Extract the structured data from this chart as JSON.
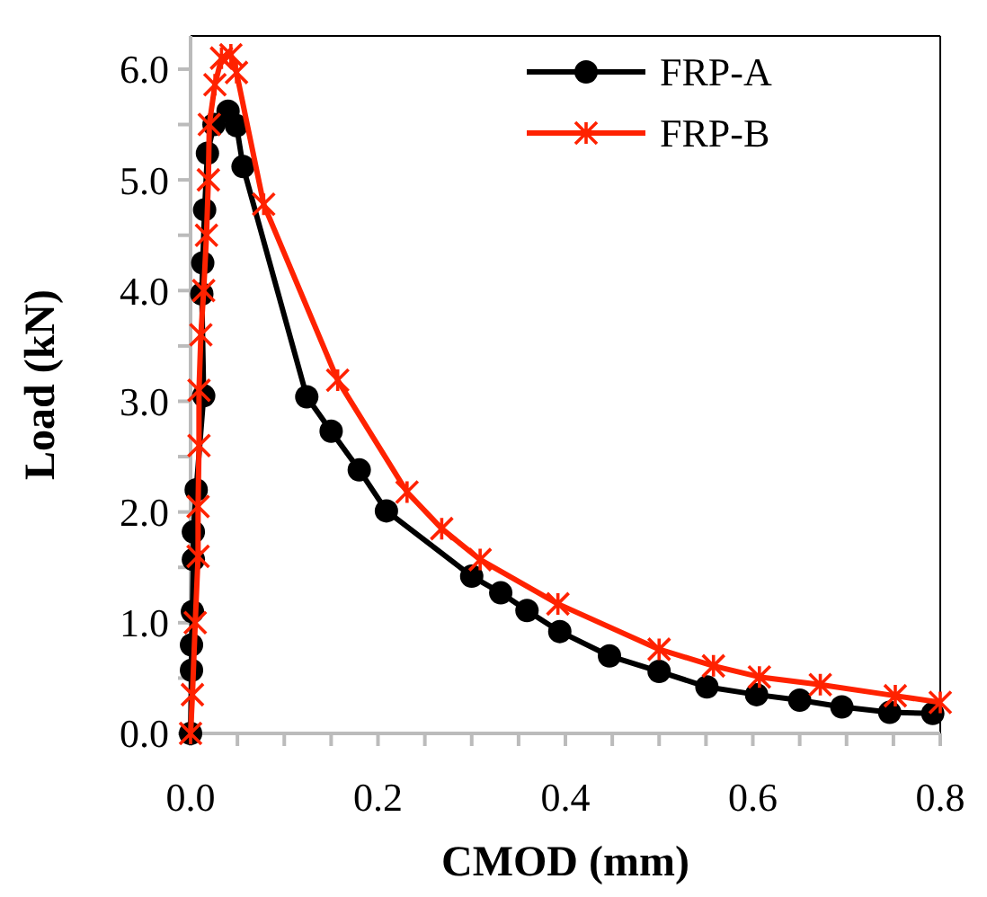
{
  "chart_data": {
    "type": "line",
    "xlabel": "CMOD (mm)",
    "ylabel": "Load (kN)",
    "xlim": [
      0,
      0.8
    ],
    "ylim": [
      0,
      6.3
    ],
    "xticks": [
      {
        "value": 0,
        "label": "0.0"
      },
      {
        "value": 0.05,
        "label": null
      },
      {
        "value": 0.1,
        "label": null
      },
      {
        "value": 0.15,
        "label": null
      },
      {
        "value": 0.2,
        "label": "0.2"
      },
      {
        "value": 0.25,
        "label": null
      },
      {
        "value": 0.3,
        "label": null
      },
      {
        "value": 0.35,
        "label": null
      },
      {
        "value": 0.4,
        "label": "0.4"
      },
      {
        "value": 0.45,
        "label": null
      },
      {
        "value": 0.5,
        "label": null
      },
      {
        "value": 0.55,
        "label": null
      },
      {
        "value": 0.6,
        "label": "0.6"
      },
      {
        "value": 0.65,
        "label": null
      },
      {
        "value": 0.7,
        "label": null
      },
      {
        "value": 0.75,
        "label": null
      },
      {
        "value": 0.8,
        "label": "0.8"
      }
    ],
    "yticks": [
      {
        "value": 0,
        "label": "0.0"
      },
      {
        "value": 0.5,
        "label": null
      },
      {
        "value": 1,
        "label": "1.0"
      },
      {
        "value": 1.5,
        "label": null
      },
      {
        "value": 2,
        "label": "2.0"
      },
      {
        "value": 2.5,
        "label": null
      },
      {
        "value": 3,
        "label": "3.0"
      },
      {
        "value": 3.5,
        "label": null
      },
      {
        "value": 4,
        "label": "4.0"
      },
      {
        "value": 4.5,
        "label": null
      },
      {
        "value": 5,
        "label": "5.0"
      },
      {
        "value": 5.5,
        "label": null
      },
      {
        "value": 6,
        "label": "6.0"
      }
    ],
    "grid": false,
    "legend": "top right",
    "series": [
      {
        "name": "FRP-A",
        "color": "#000000",
        "marker": "circle",
        "x": [
          0,
          0.001,
          0.001,
          0.002,
          0.003,
          0.003,
          0.006,
          0.014,
          0.012,
          0.013,
          0.015,
          0.018,
          0.025,
          0.04,
          0.049,
          0.056,
          0.124,
          0.15,
          0.18,
          0.209,
          0.3,
          0.331,
          0.359,
          0.394,
          0.447,
          0.5,
          0.551,
          0.604,
          0.65,
          0.695,
          0.746,
          0.792
        ],
        "values": [
          0,
          0.57,
          0.8,
          1.1,
          1.57,
          1.82,
          2.2,
          3.05,
          3.97,
          4.25,
          4.73,
          5.24,
          5.5,
          5.62,
          5.49,
          5.12,
          3.04,
          2.73,
          2.38,
          2.01,
          1.42,
          1.27,
          1.11,
          0.92,
          0.7,
          0.56,
          0.42,
          0.35,
          0.3,
          0.24,
          0.19,
          0.18
        ]
      },
      {
        "name": "FRP-B",
        "color": "#ff2200",
        "marker": "cross",
        "x": [
          0,
          0.002,
          0.005,
          0.008,
          0.008,
          0.009,
          0.009,
          0.011,
          0.014,
          0.017,
          0.019,
          0.02,
          0.026,
          0.033,
          0.043,
          0.049,
          0.078,
          0.157,
          0.231,
          0.268,
          0.309,
          0.392,
          0.5,
          0.558,
          0.607,
          0.672,
          0.752,
          0.8
        ],
        "values": [
          0,
          0.35,
          1.0,
          1.6,
          2.05,
          2.6,
          3.1,
          3.6,
          4.0,
          4.5,
          5.0,
          5.5,
          5.86,
          6.1,
          6.13,
          5.97,
          4.78,
          3.19,
          2.18,
          1.85,
          1.57,
          1.17,
          0.76,
          0.61,
          0.51,
          0.44,
          0.34,
          0.28
        ]
      }
    ]
  }
}
